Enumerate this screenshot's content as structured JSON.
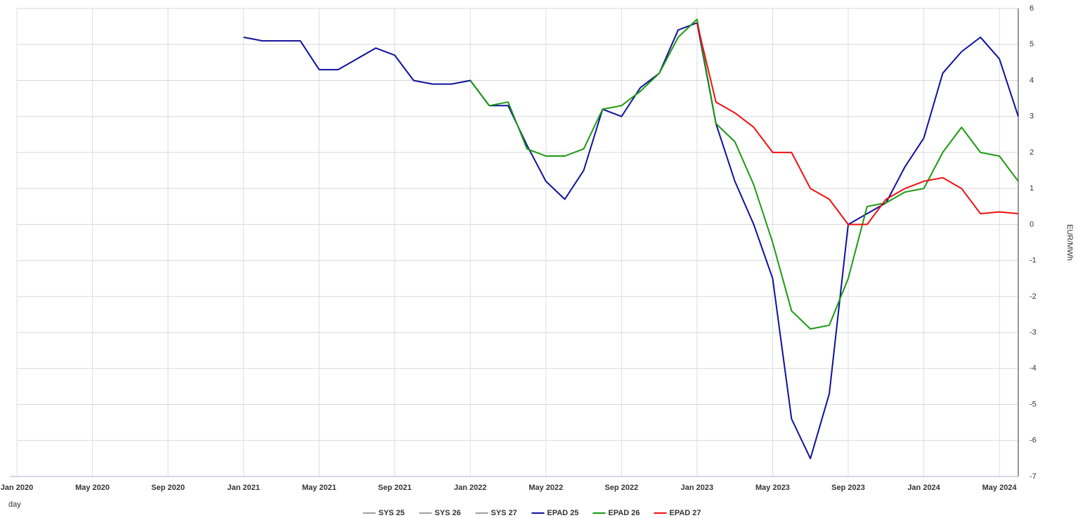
{
  "chart_data": {
    "type": "line",
    "x_label": "day",
    "y_label": "EUR/MWh",
    "x": [
      "2021-01",
      "2021-02",
      "2021-03",
      "2021-04",
      "2021-05",
      "2021-06",
      "2021-07",
      "2021-08",
      "2021-09",
      "2021-10",
      "2021-11",
      "2021-12",
      "2022-01",
      "2022-02",
      "2022-03",
      "2022-04",
      "2022-05",
      "2022-06",
      "2022-07",
      "2022-08",
      "2022-09",
      "2022-10",
      "2022-11",
      "2022-12",
      "2023-01",
      "2023-02",
      "2023-03",
      "2023-04",
      "2023-05",
      "2023-06",
      "2023-07",
      "2023-08",
      "2023-09",
      "2023-10",
      "2023-11",
      "2023-12",
      "2024-01",
      "2024-02",
      "2024-03",
      "2024-04",
      "2024-05",
      "2024-06"
    ],
    "series": [
      {
        "name": "SYS 25",
        "color": "#a0a0a0",
        "values": [
          null,
          null,
          null,
          null,
          null,
          null,
          null,
          null,
          null,
          null,
          null,
          null,
          null,
          null,
          null,
          null,
          null,
          null,
          null,
          null,
          null,
          null,
          null,
          null,
          null,
          null,
          null,
          null,
          null,
          null,
          null,
          null,
          null,
          null,
          null,
          null,
          null,
          null,
          null,
          null,
          null,
          null
        ]
      },
      {
        "name": "SYS 26",
        "color": "#a0a0a0",
        "values": [
          null,
          null,
          null,
          null,
          null,
          null,
          null,
          null,
          null,
          null,
          null,
          null,
          null,
          null,
          null,
          null,
          null,
          null,
          null,
          null,
          null,
          null,
          null,
          null,
          null,
          null,
          null,
          null,
          null,
          null,
          null,
          null,
          null,
          null,
          null,
          null,
          null,
          null,
          null,
          null,
          null,
          null
        ]
      },
      {
        "name": "SYS 27",
        "color": "#a0a0a0",
        "values": [
          null,
          null,
          null,
          null,
          null,
          null,
          null,
          null,
          null,
          null,
          null,
          null,
          null,
          null,
          null,
          null,
          null,
          null,
          null,
          null,
          null,
          null,
          null,
          null,
          null,
          null,
          null,
          null,
          null,
          null,
          null,
          null,
          null,
          null,
          null,
          null,
          null,
          null,
          null,
          null,
          null,
          null
        ]
      },
      {
        "name": "EPAD 25",
        "color": "#10119a",
        "values": [
          5.2,
          5.1,
          5.1,
          5.1,
          4.3,
          4.3,
          4.6,
          4.9,
          4.7,
          4.0,
          3.9,
          3.9,
          4.0,
          3.3,
          3.3,
          2.2,
          1.2,
          0.7,
          1.5,
          3.2,
          3.0,
          3.8,
          4.2,
          5.4,
          5.6,
          2.8,
          1.2,
          0.0,
          -1.5,
          -5.4,
          -6.5,
          -4.7,
          0.0,
          0.3,
          0.6,
          1.6,
          2.4,
          4.2,
          4.8,
          5.2,
          4.6,
          3.0
        ]
      },
      {
        "name": "EPAD 26",
        "color": "#1a9a10",
        "values": [
          null,
          null,
          null,
          null,
          null,
          null,
          null,
          null,
          null,
          null,
          null,
          null,
          4.0,
          3.3,
          3.4,
          2.1,
          1.9,
          1.9,
          2.1,
          3.2,
          3.3,
          3.7,
          4.2,
          5.2,
          5.7,
          2.8,
          2.3,
          1.1,
          -0.5,
          -2.4,
          -2.9,
          -2.8,
          -1.5,
          0.5,
          0.6,
          0.9,
          1.0,
          2.0,
          2.7,
          2.0,
          1.9,
          1.2
        ]
      },
      {
        "name": "EPAD 27",
        "color": "#f01010",
        "values": [
          null,
          null,
          null,
          null,
          null,
          null,
          null,
          null,
          null,
          null,
          null,
          null,
          null,
          null,
          null,
          null,
          null,
          null,
          null,
          null,
          null,
          null,
          null,
          null,
          5.6,
          3.4,
          3.1,
          2.7,
          2.0,
          2.0,
          1.0,
          0.7,
          0.0,
          0.0,
          0.7,
          1.0,
          1.2,
          1.3,
          1.0,
          0.3,
          0.35,
          0.3
        ]
      }
    ],
    "xlim": [
      "2020-01",
      "2024-06"
    ],
    "xticks": [
      {
        "value": "2020-01",
        "label": "Jan 2020"
      },
      {
        "value": "2020-05",
        "label": "May 2020"
      },
      {
        "value": "2020-09",
        "label": "Sep 2020"
      },
      {
        "value": "2021-01",
        "label": "Jan 2021"
      },
      {
        "value": "2021-05",
        "label": "May 2021"
      },
      {
        "value": "2021-09",
        "label": "Sep 2021"
      },
      {
        "value": "2022-01",
        "label": "Jan 2022"
      },
      {
        "value": "2022-05",
        "label": "May 2022"
      },
      {
        "value": "2022-09",
        "label": "Sep 2022"
      },
      {
        "value": "2023-01",
        "label": "Jan 2023"
      },
      {
        "value": "2023-05",
        "label": "May 2023"
      },
      {
        "value": "2023-09",
        "label": "Sep 2023"
      },
      {
        "value": "2024-01",
        "label": "Jan 2024"
      },
      {
        "value": "2024-05",
        "label": "May 2024"
      }
    ],
    "ylim": [
      -7,
      6
    ],
    "yticks": [
      -7,
      -6,
      -5,
      -4,
      -3,
      -2,
      -1,
      0,
      1,
      2,
      3,
      4,
      5,
      6
    ],
    "grid": true
  }
}
